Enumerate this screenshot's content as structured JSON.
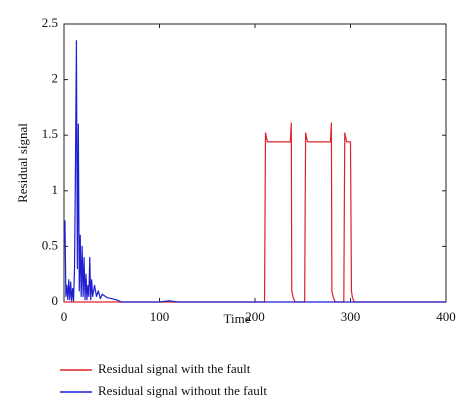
{
  "chart_data": {
    "type": "line",
    "x_label": "Time",
    "y_label": "Residual signal",
    "x": [
      0,
      1,
      2,
      3,
      4,
      5,
      6,
      7,
      8,
      9,
      10,
      11,
      12,
      13,
      14,
      15,
      16,
      17,
      18,
      19,
      20,
      21,
      22,
      23,
      24,
      25,
      26,
      27,
      28,
      29,
      30,
      32,
      34,
      36,
      38,
      40,
      45,
      50,
      55,
      60,
      100,
      110,
      120,
      210,
      210.5,
      211,
      213,
      237,
      238,
      238.5,
      239,
      240,
      242,
      252,
      252.5,
      253,
      255,
      279,
      280,
      280.5,
      281,
      282,
      284,
      293,
      293.5,
      294,
      296,
      300,
      301,
      302,
      304,
      400
    ],
    "series": [
      {
        "name": "Residual signal with the fault",
        "color": "#e0202a",
        "values": [
          0,
          0,
          0,
          0,
          0,
          0,
          0,
          0,
          0,
          0,
          0,
          0,
          0,
          0,
          0,
          0,
          0,
          0,
          0,
          0,
          0,
          0,
          0,
          0,
          0,
          0,
          0,
          0,
          0,
          0,
          0,
          0,
          0,
          0,
          0,
          0,
          0,
          0,
          0,
          0,
          0,
          0,
          0,
          0,
          0.8,
          1.52,
          1.44,
          1.44,
          1.61,
          0.1,
          0.08,
          0.04,
          0,
          0,
          0.8,
          1.52,
          1.44,
          1.44,
          1.61,
          0.1,
          0.08,
          0.04,
          0,
          0,
          0.8,
          1.52,
          1.44,
          1.44,
          0.1,
          0.04,
          0,
          0
        ]
      },
      {
        "name": "Residual signal without the fault",
        "color": "#1f1fd0",
        "values": [
          0.55,
          0.73,
          0.05,
          0.15,
          0.02,
          0.2,
          0.02,
          0.18,
          0.01,
          0.12,
          0.01,
          0.3,
          1.2,
          2.35,
          0.3,
          1.6,
          0.1,
          0.6,
          0.05,
          0.5,
          0.05,
          0.4,
          0.02,
          0.25,
          0.02,
          0.15,
          0.05,
          0.4,
          0.02,
          0.2,
          0.05,
          0.15,
          0.05,
          0.1,
          0.03,
          0.07,
          0.04,
          0.03,
          0.02,
          0,
          0,
          0.01,
          0,
          0,
          0,
          0,
          0,
          0,
          0,
          0,
          0,
          0,
          0,
          0,
          0,
          0,
          0,
          0,
          0,
          0,
          0,
          0,
          0,
          0,
          0,
          0,
          0,
          0,
          0,
          0,
          0,
          0
        ]
      }
    ],
    "xlim": [
      0,
      400
    ],
    "xticks": [
      0,
      100,
      200,
      300,
      400
    ],
    "ylim": [
      0,
      2.5
    ],
    "yticks": [
      0,
      0.5,
      1,
      1.5,
      2,
      2.5
    ]
  }
}
